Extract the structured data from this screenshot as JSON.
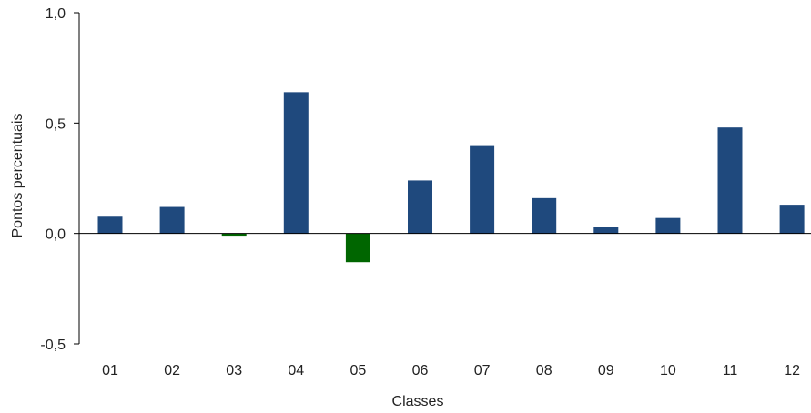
{
  "chart_data": {
    "type": "bar",
    "title": "",
    "xlabel": "Classes",
    "ylabel": "Pontos percentuais",
    "categories": [
      "01",
      "02",
      "03",
      "04",
      "05",
      "06",
      "07",
      "08",
      "09",
      "10",
      "11",
      "12"
    ],
    "values": [
      0.08,
      0.12,
      -0.01,
      0.64,
      -0.13,
      0.24,
      0.4,
      0.16,
      0.03,
      0.07,
      0.48,
      0.13
    ],
    "ylim": [
      -0.5,
      1.0
    ],
    "yticks": [
      1.0,
      0.5,
      0.0,
      -0.5
    ],
    "ytick_labels": [
      "1,0",
      "0,5",
      "0,0",
      "-0,5"
    ],
    "grid": false,
    "colors": {
      "positive": "#1f497d",
      "negative": "#006600"
    }
  }
}
